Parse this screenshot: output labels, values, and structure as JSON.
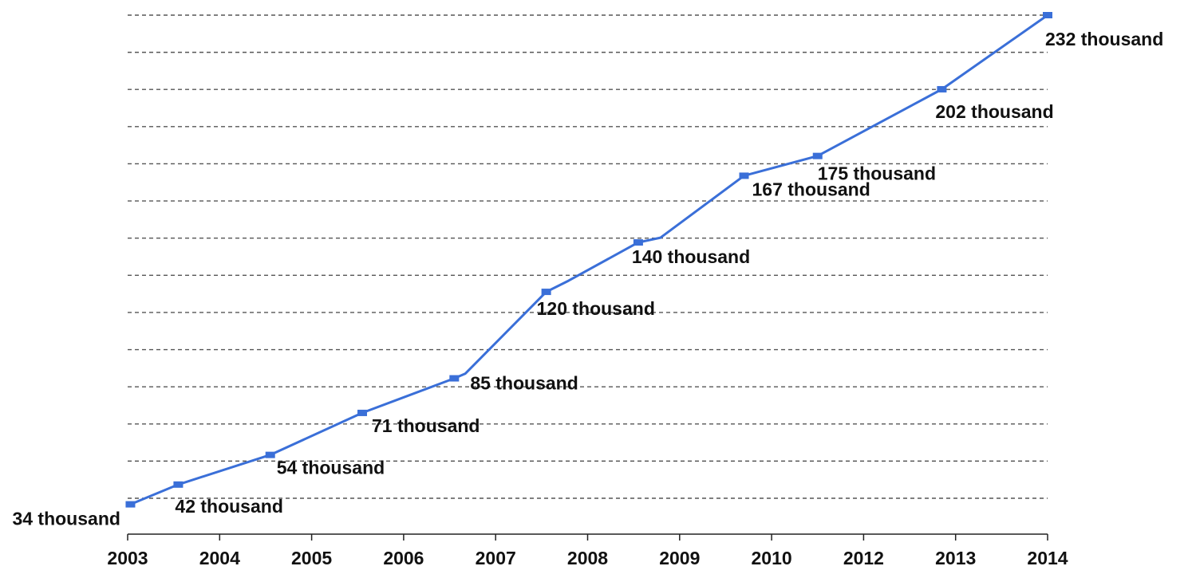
{
  "chart_data": {
    "type": "line",
    "title": "",
    "xlabel": "",
    "ylabel": "",
    "categories": [
      "2003",
      "2004",
      "2005",
      "2006",
      "2007",
      "2008",
      "2009",
      "2010",
      "2012",
      "2013",
      "2014"
    ],
    "series": [
      {
        "values": [
          34,
          42,
          54,
          71,
          85,
          120,
          140,
          167,
          175,
          202,
          232
        ],
        "color": "#3a6fd8"
      }
    ],
    "data_labels": [
      "34 thousand",
      "42 thousand",
      "54 thousand",
      "71 thousand",
      "85 thousand",
      "120 thousand",
      "140 thousand",
      "167 thousand",
      "175 thousand",
      "202 thousand",
      "232 thousand"
    ],
    "ylim": [
      30,
      232
    ],
    "grid": true,
    "legend": "none",
    "marker": "square"
  }
}
